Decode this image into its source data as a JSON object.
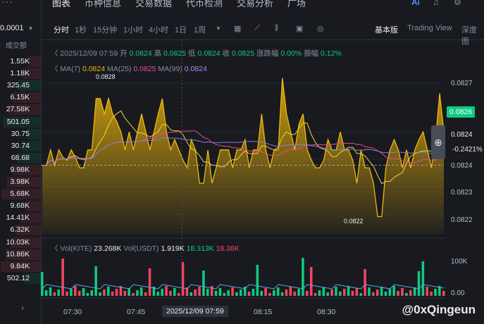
{
  "left": {
    "price_sel": "0.0001",
    "header": "成交额",
    "rows": [
      {
        "v": "1.55K",
        "c": "#f6465d"
      },
      {
        "v": "1.18K",
        "c": "#f6465d"
      },
      {
        "v": "325.45",
        "c": "#0ecb81"
      },
      {
        "v": "6.15K",
        "c": "#f6465d"
      },
      {
        "v": "27.58K",
        "c": "#f6465d"
      },
      {
        "v": "501.05",
        "c": "#0ecb81"
      },
      {
        "v": "30.75",
        "c": "#0ecb81"
      },
      {
        "v": "30.74",
        "c": "#0ecb81"
      },
      {
        "v": "68.68",
        "c": "#0ecb81"
      },
      {
        "v": "9.98K",
        "c": "#f6465d"
      },
      {
        "v": "3.98K",
        "c": "#f6465d"
      },
      {
        "v": "5.68K",
        "c": "#f6465d"
      },
      {
        "v": "9.68K",
        "c": "#f6465d"
      },
      {
        "v": "14.41K",
        "c": "#f6465d"
      },
      {
        "v": "6.32K",
        "c": "#f6465d"
      },
      {
        "v": "10.03K",
        "c": "#f6465d"
      },
      {
        "v": "10.86K",
        "c": "#f6465d"
      },
      {
        "v": "9.84K",
        "c": "#f6465d"
      },
      {
        "v": "502.12",
        "c": "#0ecb81"
      }
    ]
  },
  "tabs": [
    "图表",
    "币种信息",
    "交易数据",
    "代币检测",
    "交易分析",
    "广场"
  ],
  "toolbar": {
    "intervals": [
      "分时",
      "1秒",
      "15分钟",
      "1小时",
      "4小时",
      "1日",
      "1周"
    ],
    "views": [
      "基本版",
      "Trading View",
      "深度图"
    ]
  },
  "info": {
    "date": "2025/12/09 07:59",
    "open_l": "开",
    "open": "0.0824",
    "high_l": "高",
    "high": "0.0825",
    "low_l": "低",
    "low": "0.0824",
    "close_l": "收",
    "close": "0.0825",
    "chg_l": "涨跌幅",
    "chg": "0.00%",
    "amp_l": "振幅",
    "amp": "0.12%",
    "ma7_l": "MA(7)",
    "ma7": "0.0824",
    "ma25_l": "MA(25)",
    "ma25": "0.0825",
    "ma99_l": "MA(99)",
    "ma99": "0.0824",
    "vol_l": "Vol(KITE)",
    "vol": "23.268K",
    "volu_l": "Vol(USDT)",
    "volu": "1.919K",
    "volu_g": "18.313K",
    "volu_r": "18.38K"
  },
  "axis": {
    "p1": "0.0827",
    "current": "0.0826",
    "p2": "0.0824",
    "pct": "-0.2421%",
    "p3": "0.0824",
    "p4": "0.0823",
    "p5": "0.0822",
    "v1": "100K",
    "v2": "0.00"
  },
  "annotations": {
    "high": "0.0828",
    "low": "0.0822"
  },
  "times": [
    "07:30",
    "07:45",
    "08:15",
    "08:30"
  ],
  "time_hi": "2025/12/09 07:59",
  "watermark": "@0xQingeun",
  "chart_data": {
    "type": "area",
    "price": [
      0.08242,
      0.08242,
      0.08248,
      0.08242,
      0.08248,
      0.08245,
      0.08244,
      0.08248,
      0.08245,
      0.08241,
      0.08241,
      0.08248,
      0.08248,
      0.08268,
      0.08268,
      0.08262,
      0.08268,
      0.08262,
      0.08259,
      0.08255,
      0.08248,
      0.08255,
      0.08248,
      0.08255,
      0.08262,
      0.08255,
      0.08248,
      0.08255,
      0.08262,
      0.08268,
      0.08255,
      0.08248,
      0.08252,
      0.08248,
      0.08244,
      0.08241,
      0.08252,
      0.08248,
      0.08235,
      0.08235,
      0.08248,
      0.08235,
      0.08241,
      0.08248,
      0.08248,
      0.08248,
      0.08241,
      0.08248,
      0.08248,
      0.08252,
      0.08241,
      0.08248,
      0.08248,
      0.08262,
      0.08248,
      0.08241,
      0.08248,
      0.08248,
      0.08276,
      0.08262,
      0.08255,
      0.08248,
      0.08258,
      0.08262,
      0.08248,
      0.08244,
      0.08241,
      0.08241,
      0.08244,
      0.08252,
      0.08248,
      0.08248,
      0.08255,
      0.08248,
      0.08248,
      0.08244,
      0.08235,
      0.08248,
      0.08241,
      0.08241,
      0.08235,
      0.08222,
      0.08222,
      0.08241,
      0.08248,
      0.08252,
      0.08248,
      0.08241,
      0.08248,
      0.08241,
      0.08248,
      0.08252,
      0.08255,
      0.08248,
      0.08241,
      0.08252,
      0.0827,
      0.08255
    ]
  }
}
